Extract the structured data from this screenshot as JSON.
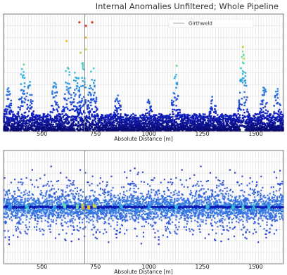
{
  "chart_data": [
    {
      "type": "scatter",
      "title": "Internal Anomalies Unfiltered; Whole Pipeline",
      "xlabel": "Absolute Distance [m]",
      "ylabel": "",
      "xlim": [
        320,
        1630
      ],
      "ylim": [
        0,
        100
      ],
      "xticks": [
        500,
        750,
        1000,
        1250,
        1500
      ],
      "xtick_labels": [
        "500",
        "750",
        "1000",
        "1250",
        "1500"
      ],
      "vline_x": 700,
      "grid": true,
      "legend": {
        "placement": "top",
        "entries": [
          "Girthweld"
        ]
      },
      "colormap": [
        "#08086b",
        "#1020c8",
        "#2f6de0",
        "#29b6dc",
        "#5fdcb8",
        "#b8e060",
        "#f0b030",
        "#e03020"
      ],
      "clusters": [
        {
          "x": 345,
          "peak": 38
        },
        {
          "x": 410,
          "peak": 55
        },
        {
          "x": 440,
          "peak": 46
        },
        {
          "x": 560,
          "peak": 44
        },
        {
          "x": 620,
          "peak": 60
        },
        {
          "x": 660,
          "peak": 58
        },
        {
          "x": 690,
          "peak": 60
        },
        {
          "x": 735,
          "peak": 65
        },
        {
          "x": 855,
          "peak": 34
        },
        {
          "x": 1000,
          "peak": 28
        },
        {
          "x": 1125,
          "peak": 50
        },
        {
          "x": 1300,
          "peak": 30
        },
        {
          "x": 1440,
          "peak": 68
        },
        {
          "x": 1540,
          "peak": 40
        },
        {
          "x": 1600,
          "peak": 36
        }
      ],
      "highlight_points": [
        {
          "x": 675,
          "y": 93,
          "level": 1.0
        },
        {
          "x": 705,
          "y": 90,
          "level": 1.0
        },
        {
          "x": 735,
          "y": 93,
          "level": 1.0
        },
        {
          "x": 705,
          "y": 80,
          "level": 0.86
        },
        {
          "x": 615,
          "y": 77,
          "level": 0.84
        },
        {
          "x": 705,
          "y": 70,
          "level": 0.74
        },
        {
          "x": 680,
          "y": 67,
          "level": 0.72
        },
        {
          "x": 1440,
          "y": 72,
          "level": 0.78
        },
        {
          "x": 1445,
          "y": 62,
          "level": 0.72
        },
        {
          "x": 1130,
          "y": 56,
          "level": 0.62
        },
        {
          "x": 415,
          "y": 57,
          "level": 0.62
        }
      ]
    },
    {
      "type": "scatter",
      "title": "",
      "xlabel": "Absolute Distance [m]",
      "ylabel": "",
      "xlim": [
        320,
        1630
      ],
      "ylim": [
        0,
        100
      ],
      "xticks": [
        500,
        750,
        1000,
        1250,
        1500
      ],
      "xtick_labels": [
        "500",
        "750",
        "1000",
        "1250",
        "1500"
      ],
      "vline_x": 700,
      "center_y": 50,
      "grid": true,
      "colormap": [
        "#08086b",
        "#1020c8",
        "#2f6de0",
        "#29b6dc",
        "#5fdcb8",
        "#b8e060",
        "#f0b030",
        "#e03020"
      ],
      "hotspots": [
        {
          "x": 350,
          "y": 50,
          "level": 0.45
        },
        {
          "x": 430,
          "y": 50,
          "level": 0.55
        },
        {
          "x": 560,
          "y": 50,
          "level": 0.5
        },
        {
          "x": 605,
          "y": 51,
          "level": 0.6
        },
        {
          "x": 665,
          "y": 50,
          "level": 0.7
        },
        {
          "x": 690,
          "y": 50,
          "level": 0.9
        },
        {
          "x": 720,
          "y": 50,
          "level": 1.0
        },
        {
          "x": 745,
          "y": 51,
          "level": 0.85
        },
        {
          "x": 870,
          "y": 50,
          "level": 0.45
        },
        {
          "x": 1000,
          "y": 50,
          "level": 0.45
        },
        {
          "x": 1130,
          "y": 50,
          "level": 0.55
        },
        {
          "x": 1275,
          "y": 50,
          "level": 0.55
        },
        {
          "x": 1395,
          "y": 50,
          "level": 0.5
        },
        {
          "x": 1440,
          "y": 50,
          "level": 0.65
        },
        {
          "x": 1490,
          "y": 50,
          "level": 0.55
        },
        {
          "x": 1560,
          "y": 50,
          "level": 0.5
        }
      ]
    }
  ]
}
